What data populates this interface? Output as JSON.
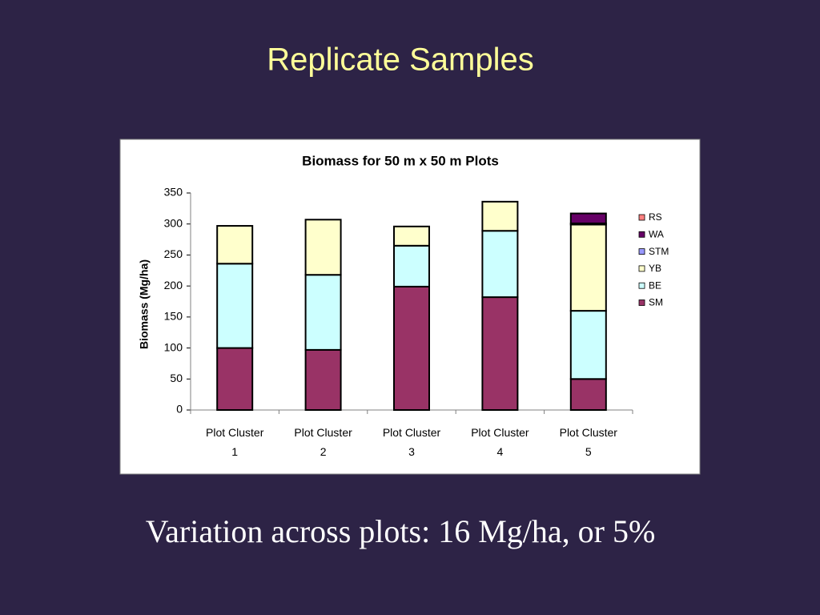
{
  "slide_title": "Replicate Samples",
  "caption": "Variation across plots: 16 Mg/ha, or 5%",
  "chart_data": {
    "type": "stacked_bar",
    "title": "Biomass for 50 m x 50 m Plots",
    "y_label": "Biomass (Mg/ha)",
    "categories": [
      "Plot Cluster 1",
      "Plot Cluster 2",
      "Plot Cluster 3",
      "Plot Cluster 4",
      "Plot Cluster 5"
    ],
    "series": [
      {
        "name": "SM",
        "color": "#993366",
        "values": [
          100,
          97,
          199,
          182,
          50
        ]
      },
      {
        "name": "BE",
        "color": "#ccffff",
        "values": [
          136,
          121,
          66,
          107,
          110
        ]
      },
      {
        "name": "YB",
        "color": "#ffffcc",
        "values": [
          61,
          89,
          31,
          47,
          139
        ]
      },
      {
        "name": "STM",
        "color": "#9999ff",
        "values": [
          0,
          0,
          0,
          0,
          2
        ]
      },
      {
        "name": "WA",
        "color": "#660066",
        "values": [
          0,
          0,
          0,
          0,
          16
        ]
      },
      {
        "name": "RS",
        "color": "#ff8080",
        "values": [
          0,
          0,
          0,
          0,
          0
        ]
      }
    ],
    "ylim": [
      0,
      350
    ],
    "yticks": [
      0,
      50,
      100,
      150,
      200,
      250,
      300,
      350
    ],
    "legend": "right"
  }
}
